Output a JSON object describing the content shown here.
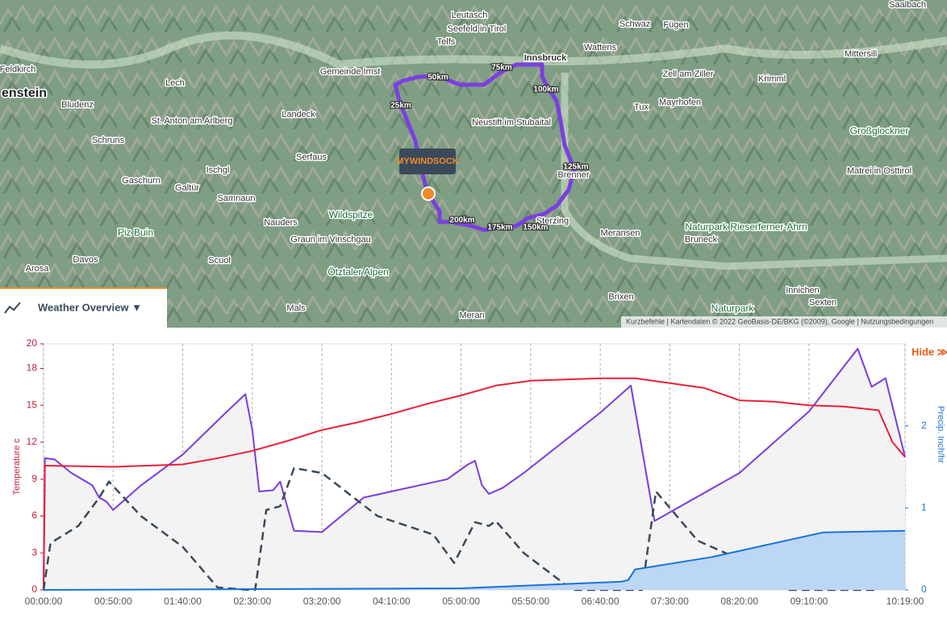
{
  "map": {
    "logo": "MYWINDSOCK",
    "places": [
      "Innsbruck",
      "Telfs",
      "Seefeld in Tirol",
      "Leutasch",
      "Schwaz",
      "Fügen",
      "Wattens",
      "Mittersill",
      "Saalbach",
      "Krimml",
      "Zell am Ziller",
      "Mayrhofen",
      "Tux",
      "Neustift im Stubaital",
      "Brenner",
      "Sterzing",
      "Meransen",
      "Bruneck",
      "Brixen",
      "Innichen",
      "Sexten",
      "Matrei in Osttirol",
      "Gemeinde Imst",
      "Lech",
      "St. Anton am Arlberg",
      "Landeck",
      "Bludenz",
      "Schruns",
      "Ischgl",
      "Serfaus",
      "Galtür",
      "Gaschurn",
      "Samnaun",
      "Nauders",
      "Davos",
      "Scuol",
      "Graun im Vinschgau",
      "Arosa",
      "Mals",
      "Meran",
      "Feldkirch",
      "enstein"
    ],
    "pois": [
      "Großglockner",
      "Wildspitze",
      "Ötztaler Alpen",
      "Piz Buin",
      "Naturpark Rieserferner-Ahrn",
      "Naturpark"
    ],
    "distances": [
      "25km",
      "50km",
      "75km",
      "100km",
      "125km",
      "150km",
      "175km",
      "200km"
    ],
    "attribution": "Kurzbefehle | Kartendaten © 2022 GeoBasis-DE/BKG (©2009), Google | Nutzungsbedingungen"
  },
  "tab": {
    "title": "Weather Overview ▼"
  },
  "hide": "Hide ≫",
  "chart_data": {
    "type": "line",
    "ylabel": "Temperature c",
    "y2label": "Precip. Inch/hr",
    "xlim": [
      0,
      619
    ],
    "xticks": [
      {
        "value": 0,
        "label": "00:00:00"
      },
      {
        "value": 50,
        "label": "00:50:00"
      },
      {
        "value": 100,
        "label": "01:40:00"
      },
      {
        "value": 150,
        "label": "02:30:00"
      },
      {
        "value": 200,
        "label": "03:20:00"
      },
      {
        "value": 250,
        "label": "04:10:00"
      },
      {
        "value": 300,
        "label": "05:00:00"
      },
      {
        "value": 350,
        "label": "05:50:00"
      },
      {
        "value": 400,
        "label": "06:40:00"
      },
      {
        "value": 450,
        "label": "07:30:00"
      },
      {
        "value": 500,
        "label": "08:20:00"
      },
      {
        "value": 550,
        "label": "09:10:00"
      },
      {
        "value": 619,
        "label": "10:19:00"
      }
    ],
    "ylim": [
      0,
      20
    ],
    "yticks": [
      0,
      3,
      6,
      9,
      12,
      15,
      18,
      20
    ],
    "y2lim": [
      0,
      3
    ],
    "y2ticks": [
      0,
      1,
      2
    ],
    "grid": true,
    "series": [
      {
        "color": "#cccccc",
        "fill": "#f3f3f3",
        "x": [
          0,
          1,
          8,
          20,
          35,
          40,
          45,
          50,
          70,
          100,
          130,
          145,
          150,
          155,
          165,
          170,
          180,
          200,
          230,
          250,
          290,
          305,
          310,
          315,
          320,
          330,
          345,
          400,
          422,
          439,
          500,
          550,
          585,
          595,
          605,
          612,
          619
        ],
        "values": [
          0,
          10.7,
          10.6,
          9.5,
          8.5,
          7.5,
          7.2,
          6.5,
          8.5,
          11,
          14.3,
          15.9,
          13,
          8.0,
          8.1,
          8.8,
          4.8,
          4.7,
          7.5,
          8.0,
          9.0,
          10.2,
          10.5,
          8.5,
          7.8,
          8.3,
          9.5,
          14.4,
          16.6,
          5.6,
          9.5,
          14.5,
          19.6,
          16.5,
          17.2,
          14,
          10.8
        ]
      },
      {
        "color": "#7b3fe0",
        "x": [
          0,
          1,
          8,
          20,
          35,
          40,
          45,
          50,
          70,
          100,
          130,
          145,
          150,
          155,
          165,
          170,
          180,
          200,
          230,
          250,
          290,
          305,
          310,
          315,
          320,
          330,
          345,
          400,
          422,
          439,
          500,
          550,
          585,
          595,
          605,
          612,
          619
        ],
        "values": [
          0,
          10.7,
          10.6,
          9.5,
          8.5,
          7.5,
          7.2,
          6.5,
          8.5,
          11,
          14.3,
          15.9,
          13,
          8.0,
          8.1,
          8.8,
          4.8,
          4.7,
          7.5,
          8.0,
          9.0,
          10.2,
          10.5,
          8.5,
          7.8,
          8.3,
          9.5,
          14.4,
          16.6,
          5.6,
          9.5,
          14.5,
          19.6,
          16.5,
          17.2,
          14,
          10.8
        ]
      },
      {
        "color": "#e8203a",
        "x": [
          0,
          1,
          50,
          100,
          125,
          150,
          175,
          200,
          225,
          250,
          275,
          300,
          325,
          350,
          375,
          400,
          425,
          450,
          475,
          500,
          525,
          550,
          575,
          600,
          610,
          619
        ],
        "values": [
          0,
          10.1,
          10.0,
          10.2,
          10.7,
          11.3,
          12.1,
          13,
          13.6,
          14.3,
          15.1,
          15.8,
          16.6,
          17,
          17.1,
          17.2,
          17.2,
          16.8,
          16.4,
          15.4,
          15.3,
          15.0,
          14.9,
          14.6,
          12,
          10.8
        ]
      },
      {
        "color": "#3a4a5a",
        "dash": true,
        "x": [
          0,
          5,
          25,
          40,
          47,
          70,
          100,
          125,
          148,
          152,
          160,
          170,
          180,
          200,
          240,
          280,
          295,
          310,
          320,
          325,
          345,
          380,
          430,
          440,
          470,
          500,
          535,
          600,
          610,
          617
        ],
        "values": [
          0,
          3.8,
          5.2,
          7.5,
          8.8,
          6,
          3.5,
          0.2,
          0,
          0,
          6.5,
          6.8,
          9.9,
          9.5,
          6,
          4.5,
          2.2,
          5.5,
          5.2,
          5.6,
          3,
          0,
          0,
          8,
          4,
          2.5,
          0,
          0,
          1.5,
          2.5
        ]
      },
      {
        "color": "#1a73d9",
        "fill": "#bcd6f5",
        "axis": "y2",
        "x": [
          0,
          300,
          415,
          420,
          425,
          480,
          560,
          619
        ],
        "values": [
          0,
          0.02,
          0.1,
          0.12,
          0.25,
          0.4,
          0.7,
          0.72
        ]
      }
    ]
  }
}
